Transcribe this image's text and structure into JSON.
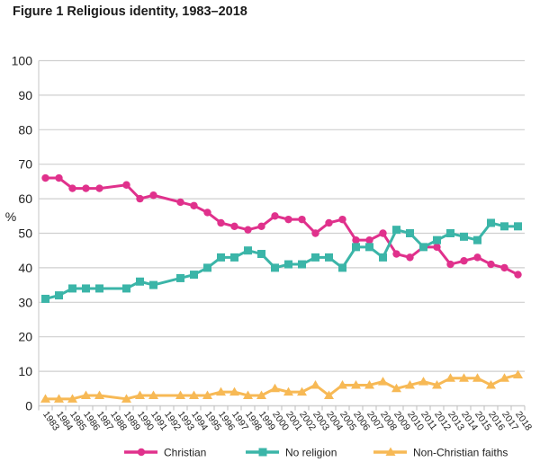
{
  "chart_data": {
    "type": "line",
    "title": "Figure 1 Religious identity, 1983–2018",
    "xlabel": "",
    "ylabel": "%",
    "ylim": [
      0,
      100
    ],
    "yticks": [
      0,
      10,
      20,
      30,
      40,
      50,
      60,
      70,
      80,
      90,
      100
    ],
    "grid": true,
    "legend_position": "bottom",
    "categories": [
      "1983",
      "1984",
      "1985",
      "1986",
      "1987",
      "1988",
      "1989",
      "1990",
      "1991",
      "1992",
      "1993",
      "1994",
      "1995",
      "1996",
      "1997",
      "1998",
      "1999",
      "2000",
      "2001",
      "2002",
      "2003",
      "2004",
      "2005",
      "2006",
      "2007",
      "2008",
      "2009",
      "2010",
      "2011",
      "2012",
      "2013",
      "2014",
      "2015",
      "2016",
      "2017",
      "2018"
    ],
    "x": [
      1983,
      1984,
      1985,
      1986,
      1987,
      1989,
      1990,
      1991,
      1993,
      1994,
      1995,
      1996,
      1997,
      1998,
      1999,
      2000,
      2001,
      2002,
      2003,
      2004,
      2005,
      2006,
      2007,
      2008,
      2009,
      2010,
      2011,
      2012,
      2013,
      2014,
      2015,
      2016,
      2017,
      2018
    ],
    "series": [
      {
        "name": "Christian",
        "color": "#e0318c",
        "marker": "circle",
        "values": [
          66,
          66,
          63,
          63,
          63,
          64,
          60,
          61,
          59,
          58,
          56,
          53,
          52,
          51,
          52,
          55,
          54,
          54,
          50,
          53,
          54,
          48,
          48,
          50,
          44,
          43,
          46,
          46,
          41,
          42,
          43,
          41,
          40,
          38
        ]
      },
      {
        "name": "No religion",
        "color": "#3bb5a8",
        "marker": "square",
        "values": [
          31,
          32,
          34,
          34,
          34,
          34,
          36,
          35,
          37,
          38,
          40,
          43,
          43,
          45,
          44,
          40,
          41,
          41,
          43,
          43,
          40,
          46,
          46,
          43,
          51,
          50,
          46,
          48,
          50,
          49,
          48,
          53,
          52,
          52
        ]
      },
      {
        "name": "Non-Christian faiths",
        "color": "#f7b955",
        "marker": "triangle",
        "values": [
          2,
          2,
          2,
          3,
          3,
          2,
          3,
          3,
          3,
          3,
          3,
          4,
          4,
          3,
          3,
          5,
          4,
          4,
          6,
          3,
          6,
          6,
          6,
          7,
          5,
          6,
          7,
          6,
          8,
          8,
          8,
          6,
          8,
          9
        ]
      }
    ]
  }
}
